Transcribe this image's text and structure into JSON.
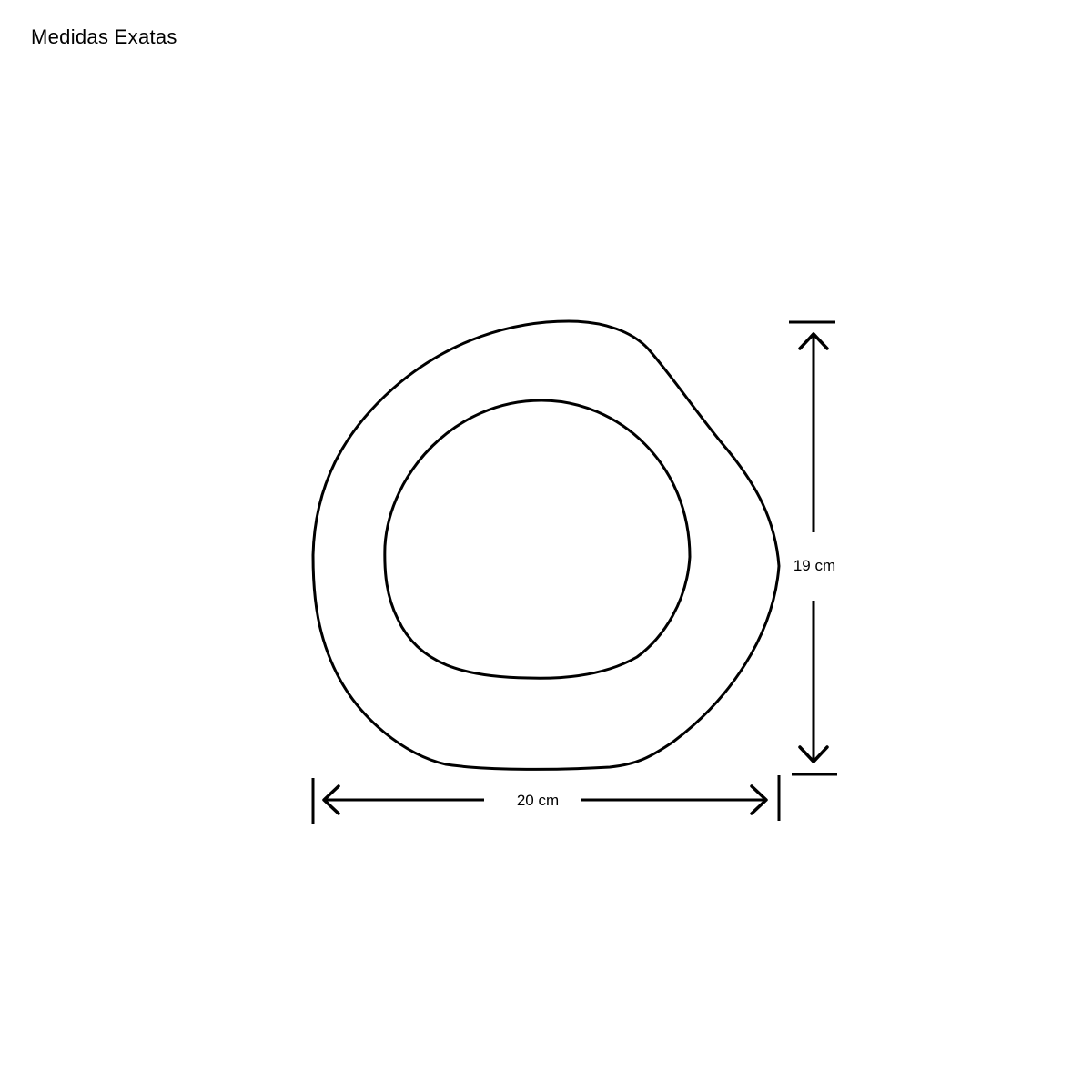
{
  "title": "Medidas Exatas",
  "dimensions": {
    "width_label": "20 cm",
    "height_label": "19 cm"
  },
  "colors": {
    "stroke": "#000000",
    "background": "#ffffff"
  }
}
